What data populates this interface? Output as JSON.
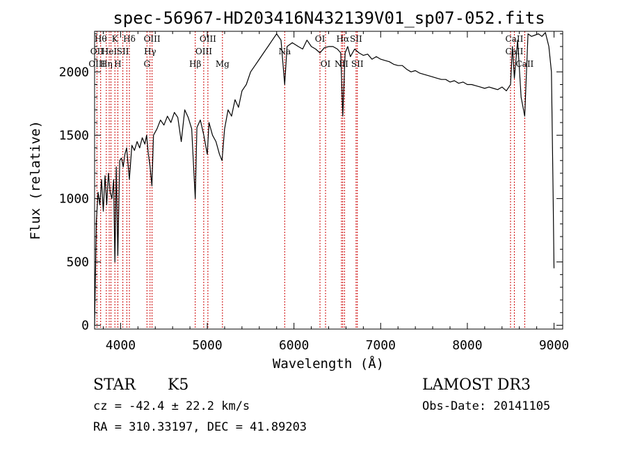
{
  "chart_data": {
    "type": "line",
    "title": "spec-56967-HD203416N432139V01_sp07-052.fits",
    "xlabel": "Wavelength (Å)",
    "ylabel": "Flux (relative)",
    "xlim": [
      3700,
      9100
    ],
    "ylim": [
      -30,
      2320
    ],
    "xticks": [
      4000,
      5000,
      6000,
      7000,
      8000,
      9000
    ],
    "yticks": [
      0,
      500,
      1000,
      1500,
      2000
    ],
    "x": [
      3700,
      3720,
      3740,
      3760,
      3780,
      3800,
      3820,
      3840,
      3860,
      3880,
      3900,
      3920,
      3934,
      3950,
      3968,
      3990,
      4010,
      4030,
      4050,
      4070,
      4101,
      4130,
      4160,
      4190,
      4220,
      4250,
      4280,
      4300,
      4320,
      4340,
      4361,
      4380,
      4420,
      4460,
      4500,
      4540,
      4580,
      4620,
      4660,
      4700,
      4740,
      4780,
      4820,
      4861,
      4880,
      4920,
      4960,
      5000,
      5020,
      5060,
      5100,
      5140,
      5170,
      5200,
      5240,
      5280,
      5320,
      5360,
      5400,
      5450,
      5500,
      5550,
      5600,
      5650,
      5700,
      5750,
      5800,
      5850,
      5893,
      5920,
      5980,
      6050,
      6100,
      6150,
      6200,
      6250,
      6300,
      6350,
      6400,
      6450,
      6500,
      6540,
      6563,
      6590,
      6620,
      6650,
      6700,
      6750,
      6800,
      6850,
      6900,
      6950,
      7000,
      7050,
      7100,
      7150,
      7200,
      7250,
      7300,
      7350,
      7400,
      7450,
      7500,
      7550,
      7600,
      7650,
      7700,
      7750,
      7800,
      7850,
      7900,
      7950,
      8000,
      8050,
      8100,
      8150,
      8200,
      8250,
      8300,
      8350,
      8400,
      8450,
      8498,
      8520,
      8542,
      8580,
      8620,
      8662,
      8700,
      8740,
      8780,
      8820,
      8860,
      8900,
      8940,
      8970,
      8990,
      9000
    ],
    "y": [
      0,
      820,
      1050,
      950,
      1150,
      900,
      1180,
      950,
      1200,
      1050,
      1000,
      1150,
      500,
      1250,
      550,
      1300,
      1320,
      1250,
      1350,
      1400,
      1150,
      1420,
      1380,
      1450,
      1400,
      1480,
      1430,
      1500,
      1350,
      1250,
      1100,
      1500,
      1550,
      1620,
      1580,
      1650,
      1600,
      1680,
      1640,
      1450,
      1700,
      1640,
      1550,
      1000,
      1560,
      1620,
      1500,
      1350,
      1600,
      1500,
      1450,
      1350,
      1300,
      1550,
      1700,
      1650,
      1780,
      1720,
      1850,
      1900,
      2000,
      2050,
      2100,
      2150,
      2200,
      2250,
      2300,
      2250,
      1900,
      2200,
      2230,
      2200,
      2180,
      2250,
      2200,
      2180,
      2150,
      2190,
      2200,
      2200,
      2180,
      2150,
      1650,
      2150,
      2200,
      2120,
      2180,
      2150,
      2130,
      2140,
      2100,
      2120,
      2100,
      2090,
      2080,
      2060,
      2050,
      2050,
      2020,
      2000,
      2010,
      1990,
      1980,
      1970,
      1960,
      1950,
      1940,
      1940,
      1920,
      1930,
      1910,
      1920,
      1900,
      1900,
      1890,
      1880,
      1870,
      1880,
      1870,
      1860,
      1880,
      1850,
      1900,
      2200,
      1950,
      2250,
      1800,
      1650,
      2300,
      2280,
      2290,
      2300,
      2280,
      2310,
      2200,
      2000,
      1000,
      450
    ]
  },
  "spectral_lines": [
    {
      "wl": 3727,
      "rows": [
        "",
        "OII",
        "OIII"
      ]
    },
    {
      "wl": 3770,
      "rows": [
        "Hθ",
        "",
        ""
      ]
    },
    {
      "wl": 3835,
      "rows": [
        "",
        "",
        "Hη"
      ]
    },
    {
      "wl": 3869,
      "rows": [
        "",
        "HeI",
        ""
      ]
    },
    {
      "wl": 3889,
      "rows": [
        "",
        "",
        ""
      ]
    },
    {
      "wl": 3934,
      "rows": [
        "K",
        "",
        ""
      ]
    },
    {
      "wl": 3968,
      "rows": [
        "",
        "",
        "H"
      ]
    },
    {
      "wl": 4026,
      "rows": [
        "",
        "SII",
        ""
      ]
    },
    {
      "wl": 4072,
      "rows": [
        "",
        "",
        ""
      ]
    },
    {
      "wl": 4101,
      "rows": [
        "Hδ",
        "",
        ""
      ]
    },
    {
      "wl": 4304,
      "rows": [
        "",
        "",
        "G"
      ]
    },
    {
      "wl": 4340,
      "rows": [
        "",
        "Hγ",
        ""
      ]
    },
    {
      "wl": 4363,
      "rows": [
        "OIII",
        "",
        ""
      ]
    },
    {
      "wl": 4861,
      "rows": [
        "",
        "",
        "Hβ"
      ]
    },
    {
      "wl": 4959,
      "rows": [
        "",
        "OIII",
        ""
      ]
    },
    {
      "wl": 5007,
      "rows": [
        "OIII",
        "",
        ""
      ]
    },
    {
      "wl": 5175,
      "rows": [
        "",
        "",
        "Mg"
      ]
    },
    {
      "wl": 5893,
      "rows": [
        "",
        "Na",
        ""
      ]
    },
    {
      "wl": 6300,
      "rows": [
        "OI",
        "",
        ""
      ]
    },
    {
      "wl": 6364,
      "rows": [
        "",
        "",
        "OI"
      ]
    },
    {
      "wl": 6548,
      "rows": [
        "",
        "",
        "NII"
      ]
    },
    {
      "wl": 6563,
      "rows": [
        "Hα",
        "",
        ""
      ]
    },
    {
      "wl": 6583,
      "rows": [
        "",
        "",
        ""
      ]
    },
    {
      "wl": 6716,
      "rows": [
        "SII",
        "",
        ""
      ]
    },
    {
      "wl": 6731,
      "rows": [
        "",
        "",
        "SII"
      ]
    },
    {
      "wl": 8498,
      "rows": [
        "",
        "",
        ""
      ]
    },
    {
      "wl": 8542,
      "rows": [
        "CaII",
        "CaII",
        ""
      ]
    },
    {
      "wl": 8662,
      "rows": [
        "",
        "",
        "CaII"
      ]
    }
  ],
  "info": {
    "object_class": "STAR",
    "subclass": "K5",
    "survey": "LAMOST DR3",
    "cz": "cz = -42.4 ± 22.2 km/s",
    "obs_date": "Obs-Date: 20141105",
    "coords": "RA = 310.33197, DEC =  41.89203"
  },
  "colors": {
    "line": "#000000",
    "marker": "#cc0000",
    "background": "#ffffff"
  }
}
